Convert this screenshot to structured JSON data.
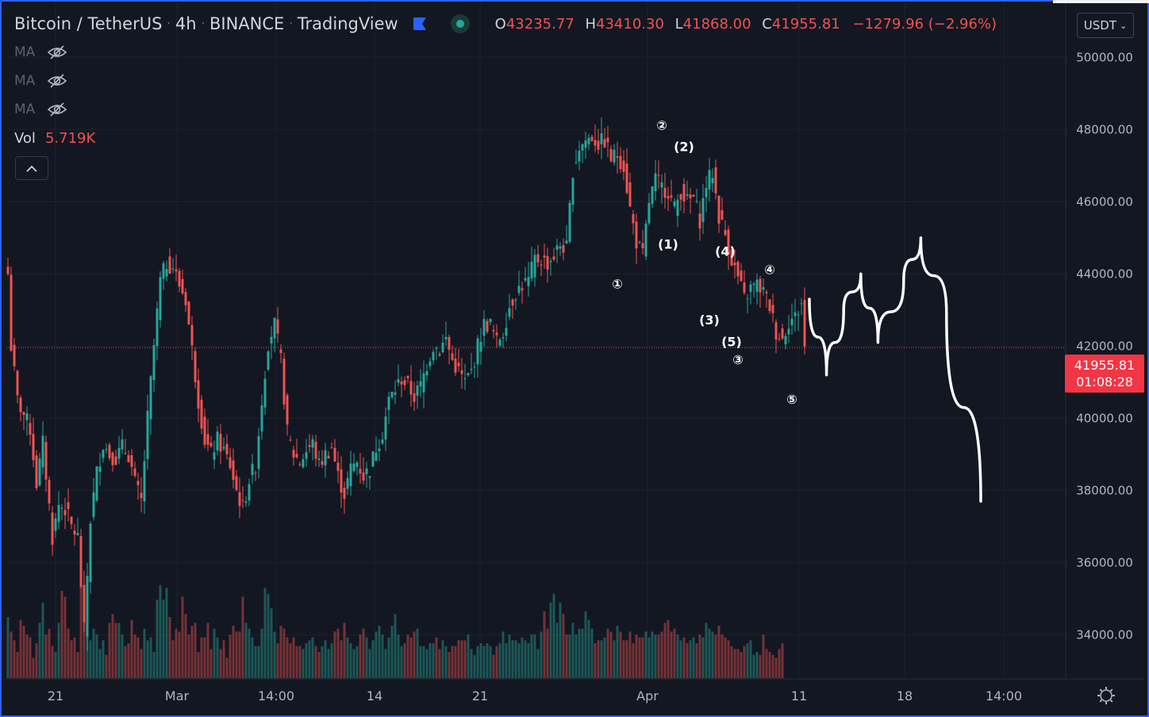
{
  "header": {
    "symbol_name": "Bitcoin / TetherUS",
    "interval": "4h",
    "exchange": "BINANCE",
    "source": "TradingView",
    "ohlc": {
      "o_label": "O",
      "o": "43235.77",
      "h_label": "H",
      "h": "43410.30",
      "l_label": "L",
      "l": "41868.00",
      "c_label": "C",
      "c": "41955.81",
      "change": "−1279.96 (−2.96%)"
    }
  },
  "indicators": [
    {
      "label": "MA",
      "icon": "eye-off-icon"
    },
    {
      "label": "MA",
      "icon": "eye-off-icon"
    },
    {
      "label": "MA",
      "icon": "eye-off-icon"
    }
  ],
  "volume": {
    "label": "Vol",
    "value": "5.719K"
  },
  "currency": "USDT",
  "last_price": {
    "price": "41955.81",
    "countdown": "01:08:28"
  },
  "colors": {
    "up": "#26a69a",
    "down": "#ef5350",
    "drawing": "#ffffff",
    "price_tag": "#f23645",
    "frame": "#2962ff"
  },
  "chart_data": {
    "type": "candlestick",
    "y_axis": {
      "range": [
        32800,
        51500
      ],
      "ticks": [
        "50000.00",
        "48000.00",
        "46000.00",
        "44000.00",
        "42000.00",
        "40000.00",
        "38000.00",
        "36000.00",
        "34000.00"
      ],
      "tick_values": [
        50000,
        48000,
        46000,
        44000,
        42000,
        40000,
        38000,
        36000,
        34000
      ]
    },
    "x_axis": {
      "labels": [
        "21",
        "Mar",
        "14:00",
        "14",
        "21",
        "Apr",
        "11",
        "18",
        "14:00"
      ]
    },
    "price_path": [
      [
        0,
        44000
      ],
      [
        1,
        42000
      ],
      [
        3,
        40500
      ],
      [
        5,
        40100
      ],
      [
        7,
        39700
      ],
      [
        9,
        38200
      ],
      [
        11,
        39300
      ],
      [
        14,
        36700
      ],
      [
        16,
        37600
      ],
      [
        18,
        37500
      ],
      [
        20,
        37000
      ],
      [
        22,
        36700
      ],
      [
        24,
        34100
      ],
      [
        26,
        37200
      ],
      [
        28,
        38500
      ],
      [
        30,
        39300
      ],
      [
        32,
        39000
      ],
      [
        34,
        38900
      ],
      [
        36,
        39200
      ],
      [
        38,
        39000
      ],
      [
        40,
        38200
      ],
      [
        42,
        37700
      ],
      [
        44,
        40000
      ],
      [
        46,
        42000
      ],
      [
        48,
        43800
      ],
      [
        50,
        44300
      ],
      [
        52,
        44200
      ],
      [
        54,
        43700
      ],
      [
        56,
        43300
      ],
      [
        58,
        41900
      ],
      [
        60,
        40500
      ],
      [
        62,
        39400
      ],
      [
        64,
        39000
      ],
      [
        66,
        39400
      ],
      [
        68,
        39100
      ],
      [
        70,
        38700
      ],
      [
        72,
        38000
      ],
      [
        74,
        37500
      ],
      [
        76,
        38300
      ],
      [
        78,
        38700
      ],
      [
        80,
        40500
      ],
      [
        82,
        42100
      ],
      [
        84,
        42600
      ],
      [
        86,
        41600
      ],
      [
        88,
        39600
      ],
      [
        90,
        39000
      ],
      [
        92,
        38800
      ],
      [
        94,
        39100
      ],
      [
        96,
        39300
      ],
      [
        98,
        38700
      ],
      [
        100,
        39000
      ],
      [
        102,
        39200
      ],
      [
        104,
        38400
      ],
      [
        106,
        37900
      ],
      [
        108,
        38600
      ],
      [
        110,
        38800
      ],
      [
        112,
        38400
      ],
      [
        114,
        38600
      ],
      [
        116,
        39200
      ],
      [
        118,
        39600
      ],
      [
        120,
        40500
      ],
      [
        122,
        40800
      ],
      [
        124,
        41100
      ],
      [
        126,
        40900
      ],
      [
        128,
        40600
      ],
      [
        130,
        40900
      ],
      [
        132,
        41500
      ],
      [
        134,
        42000
      ],
      [
        136,
        41900
      ],
      [
        138,
        42200
      ],
      [
        140,
        41600
      ],
      [
        142,
        41300
      ],
      [
        144,
        41000
      ],
      [
        146,
        41300
      ],
      [
        148,
        42000
      ],
      [
        150,
        42600
      ],
      [
        152,
        42600
      ],
      [
        154,
        42100
      ],
      [
        156,
        42400
      ],
      [
        158,
        43100
      ],
      [
        160,
        43500
      ],
      [
        162,
        43700
      ],
      [
        164,
        43800
      ],
      [
        166,
        44400
      ],
      [
        168,
        44400
      ],
      [
        170,
        44300
      ],
      [
        172,
        44500
      ],
      [
        174,
        44800
      ],
      [
        176,
        44700
      ],
      [
        178,
        46900
      ],
      [
        180,
        47500
      ],
      [
        182,
        47700
      ],
      [
        184,
        47800
      ],
      [
        186,
        47600
      ],
      [
        188,
        47700
      ],
      [
        190,
        47200
      ],
      [
        192,
        47300
      ],
      [
        194,
        47000
      ],
      [
        196,
        45800
      ],
      [
        198,
        44900
      ],
      [
        200,
        44500
      ],
      [
        202,
        46000
      ],
      [
        204,
        46600
      ],
      [
        206,
        46400
      ],
      [
        208,
        46300
      ],
      [
        210,
        45800
      ],
      [
        212,
        46300
      ],
      [
        214,
        46000
      ],
      [
        216,
        46100
      ],
      [
        218,
        45500
      ],
      [
        220,
        46500
      ],
      [
        222,
        46800
      ],
      [
        224,
        45600
      ],
      [
        226,
        45100
      ],
      [
        228,
        44400
      ],
      [
        230,
        43900
      ],
      [
        232,
        43300
      ],
      [
        234,
        43600
      ],
      [
        236,
        43700
      ],
      [
        238,
        43500
      ],
      [
        240,
        43100
      ],
      [
        242,
        42400
      ],
      [
        244,
        42200
      ],
      [
        246,
        42700
      ],
      [
        248,
        42800
      ],
      [
        250,
        43200
      ],
      [
        251,
        41955
      ]
    ],
    "volume_range": [
      0,
      6000
    ],
    "volume_values": [
      2100,
      1600,
      1300,
      900,
      2000,
      1800,
      1500,
      1400,
      700,
      1200,
      1900,
      2600,
      1500,
      1700,
      1100,
      900,
      1900,
      3000,
      2800,
      1700,
      1300,
      1400,
      900,
      3400,
      2300,
      2000,
      1300,
      1700,
      1500,
      1000,
      1300,
      800,
      1900,
      2200,
      1900,
      1900,
      1500,
      1100,
      1200,
      2000,
      1500,
      1400,
      1000,
      1700,
      1300,
      1400,
      900,
      2700,
      3200,
      2700,
      3100,
      2100,
      1300,
      1700,
      1600,
      2800,
      2200,
      1500,
      1800,
      1900,
      900,
      1400,
      1400,
      1900,
      1000,
      1700,
      1400,
      1000,
      1300,
      700,
      1500,
      1800,
      1600,
      1600,
      2800,
      1900,
      1700,
      1400,
      1100,
      1100,
      1700,
      3100,
      2900,
      2400,
      1600,
      1200,
      1800,
      1700,
      1400,
      1200,
      1400,
      1100,
      1100,
      1000,
      1200,
      1300,
      1400,
      1100,
      900,
      1100,
      1300,
      1000,
      1200,
      1600,
      1700,
      1300,
      1900,
      1400,
      1200,
      1000,
      1100,
      1500,
      1700,
      1400,
      1000,
      1300,
      1600,
      1800,
      1500,
      1000,
      1400,
      1800,
      2200,
      1500,
      1100,
      1200,
      1500,
      1400,
      1600,
      1700,
      1100,
      1100,
      1000,
      1200,
      1200,
      1400,
      1000,
      1300,
      1100,
      900,
      1100,
      1100,
      1300,
      1300,
      1300,
      1500,
      1000,
      800,
      1100,
      1200,
      1100,
      1200,
      1100,
      800,
      1100,
      1200,
      1600,
      1200,
      1500,
      1300,
      1300,
      1200,
      1400,
      1300,
      1200,
      1500,
      1500,
      1000,
      1600,
      2300,
      1700,
      2600,
      2900,
      1900,
      2600,
      2200,
      1500,
      1500,
      1900,
      1500,
      1700,
      1700,
      2300,
      2000,
      1700,
      1200,
      1300,
      1300,
      1400,
      1700,
      1600,
      1300,
      1800,
      1600,
      1300,
      1300,
      1600,
      1200,
      1500,
      1400,
      1400,
      1600,
      1400,
      1600,
      1500,
      1500,
      1600,
      1900,
      2000,
      1600,
      1700,
      1500,
      1300,
      1400,
      1200,
      1300,
      1400,
      1200,
      1500,
      1400,
      1900,
      1700,
      1600,
      1500,
      1800,
      1500,
      1400,
      1300,
      1100,
      1000,
      1000,
      900,
      1100,
      1200,
      1300,
      800,
      900,
      800,
      1500,
      1000,
      900,
      800,
      700,
      1000,
      1200
    ]
  },
  "annotations": [
    {
      "text": "①",
      "price": 43600,
      "x_index": 192
    },
    {
      "text": "②",
      "price": 48000,
      "x_index": 206
    },
    {
      "text": "(2)",
      "price": 47400,
      "x_index": 213
    },
    {
      "text": "(1)",
      "price": 44700,
      "x_index": 208
    },
    {
      "text": "(4)",
      "price": 44500,
      "x_index": 226
    },
    {
      "text": "④",
      "price": 44000,
      "x_index": 240
    },
    {
      "text": "(3)",
      "price": 42600,
      "x_index": 221
    },
    {
      "text": "(5)",
      "price": 42000,
      "x_index": 228
    },
    {
      "text": "③",
      "price": 41500,
      "x_index": 230
    },
    {
      "text": "⑤",
      "price": 40400,
      "x_index": 247
    }
  ],
  "projection": [
    [
      0,
      43300
    ],
    [
      4,
      41200
    ],
    [
      8,
      43000
    ],
    [
      12,
      44000
    ],
    [
      16,
      42100
    ],
    [
      22,
      43800
    ],
    [
      26,
      45000
    ],
    [
      32,
      42900
    ],
    [
      40,
      37700
    ]
  ]
}
